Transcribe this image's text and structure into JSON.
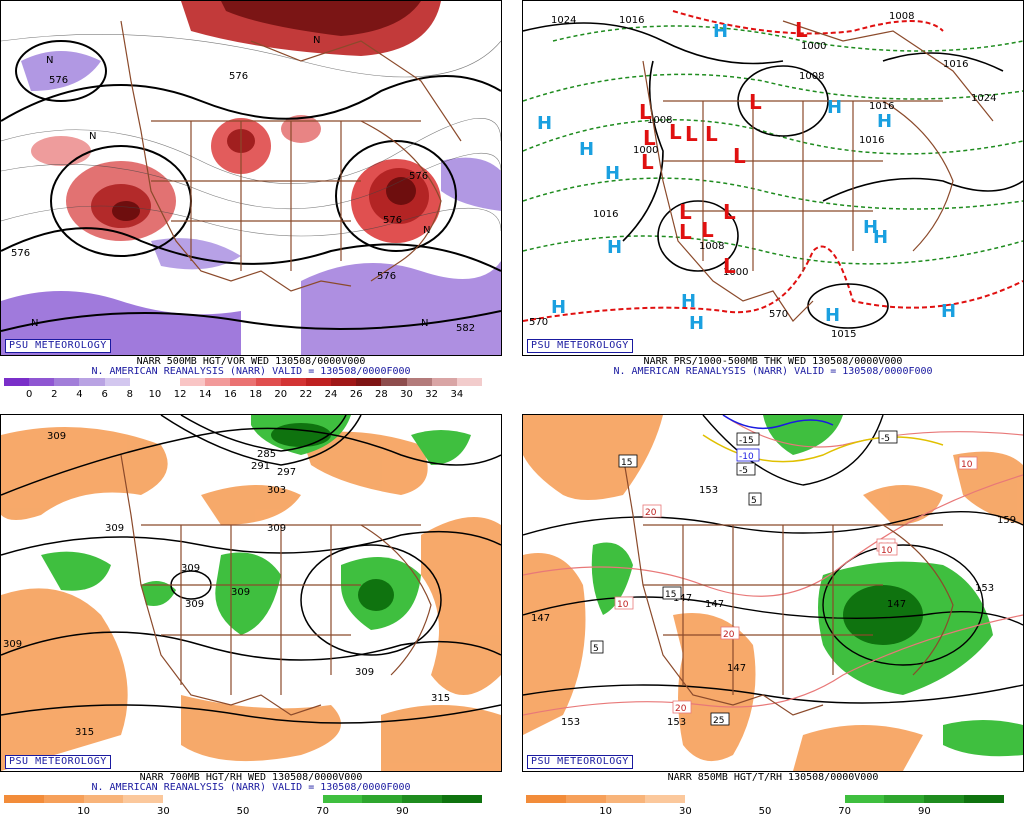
{
  "panels": [
    {
      "id": "vor500",
      "badge": "PSU METEOROLOGY",
      "title1": "NARR 500MB HGT/VOR WED 130508/0000V000",
      "title2": "N. AMERICAN REANALYSIS (NARR) VALID = 130508/0000F000",
      "colorbar": [
        "#7a2fc9",
        "#8f56d2",
        "#a27ed9",
        "#b9a3e3",
        "#d3c7ef",
        "#ffffff",
        "#ffffff",
        "#f9c5c5",
        "#f29a9a",
        "#ea7272",
        "#e04e4e",
        "#d33434",
        "#bf2121",
        "#a01818",
        "#7f1515",
        "#8e4d4d",
        "#b37b7b",
        "#d9a5a5",
        "#f2cccc"
      ],
      "ticks": [
        "0",
        "2",
        "4",
        "6",
        "8",
        "10",
        "12",
        "14",
        "16",
        "18",
        "20",
        "22",
        "24",
        "26",
        "28",
        "30",
        "32",
        "34"
      ],
      "labels": [
        "576",
        "576",
        "576",
        "576",
        "576",
        "N",
        "N",
        "N",
        "N",
        "N",
        "N",
        "576",
        "582"
      ]
    },
    {
      "id": "thk",
      "badge": "PSU METEOROLOGY",
      "title1": "NARR PRS/1000-500MB THK WED 130508/0000V000",
      "title2": "N. AMERICAN REANALYSIS (NARR) VALID = 130508/0000F000",
      "labels": [
        "1024",
        "1016",
        "1024",
        "1016",
        "1016",
        "1008",
        "1000",
        "1008",
        "1000",
        "1016",
        "1016",
        "1008",
        "1000",
        "1008",
        "570",
        "570",
        "1015",
        "1024",
        "1016"
      ],
      "highs": [
        "H",
        "H",
        "H",
        "H",
        "H",
        "H",
        "H",
        "H",
        "H",
        "H",
        "H",
        "H",
        "H",
        "H"
      ],
      "lows": [
        "L",
        "L",
        "L",
        "L",
        "L",
        "L",
        "L",
        "L",
        "L",
        "L",
        "L",
        "L",
        "L",
        "L"
      ]
    },
    {
      "id": "rh700",
      "badge": "PSU METEOROLOGY",
      "title1": "NARR 700MB HGT/RH WED 130508/0000V000",
      "title2": "N. AMERICAN REANALYSIS (NARR) VALID = 130508/0000F000",
      "colorbar": [
        "#f28c3a",
        "#f6a05a",
        "#f8b47a",
        "#fbc89c",
        "#ffffff",
        "#ffffff",
        "#ffffff",
        "#ffffff",
        "#3fbf3f",
        "#2ea62e",
        "#1f8c1f",
        "#0f730f"
      ],
      "ticks": [
        "10",
        "30",
        "50",
        "70",
        "90"
      ],
      "labels": [
        "309",
        "309",
        "309",
        "309",
        "309",
        "309",
        "285",
        "291",
        "297",
        "303",
        "309",
        "309",
        "315",
        "315"
      ]
    },
    {
      "id": "t850",
      "badge": "PSU METEOROLOGY",
      "title1": "NARR 850MB HGT/T/RH 130508/0000V000",
      "colorbar": [
        "#f28c3a",
        "#f6a05a",
        "#f8b47a",
        "#fbc89c",
        "#ffffff",
        "#ffffff",
        "#ffffff",
        "#ffffff",
        "#3fbf3f",
        "#2ea62e",
        "#1f8c1f",
        "#0f730f"
      ],
      "ticks": [
        "10",
        "30",
        "50",
        "70",
        "90"
      ],
      "labels": [
        "153",
        "147",
        "147",
        "153",
        "147",
        "147",
        "159",
        "153",
        "147",
        "153"
      ],
      "tempboxes": [
        "-15",
        "-10",
        "-5",
        "5",
        "15",
        "20",
        "20",
        "10",
        "10",
        "10",
        "15",
        "5",
        "20",
        "25",
        "-5",
        "10"
      ]
    }
  ]
}
